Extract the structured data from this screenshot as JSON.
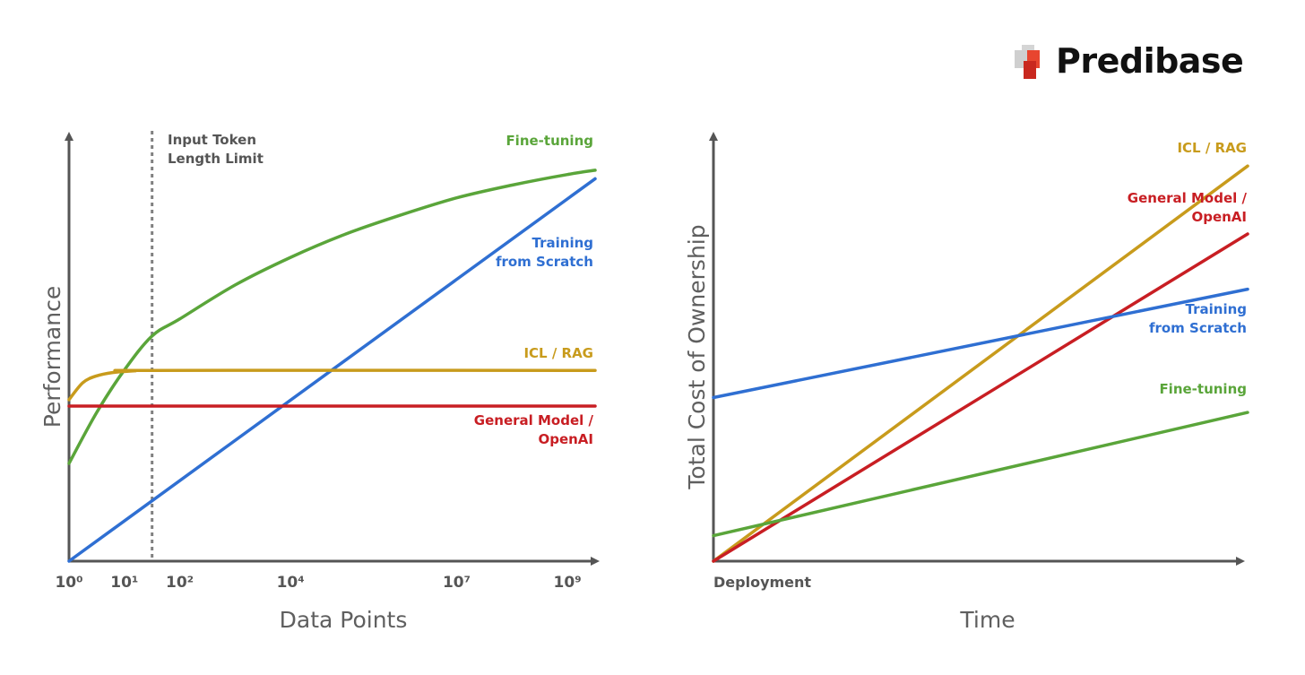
{
  "brand": {
    "name": "Predibase",
    "logo_icon": "predibase-logo-icon"
  },
  "colors": {
    "fine_tuning": "#5aa53a",
    "training": "#2f6fd2",
    "icl_rag": "#c89b1c",
    "general": "#c81e23",
    "axis": "#555555",
    "note": "#808080"
  },
  "chart_data": [
    {
      "type": "line",
      "title": "",
      "xlabel": "Data Points",
      "ylabel": "Performance",
      "xscale": "log",
      "x_ticks": [
        {
          "value": 0,
          "label": "10⁰"
        },
        {
          "value": 1,
          "label": "10¹"
        },
        {
          "value": 2,
          "label": "10²"
        },
        {
          "value": 4,
          "label": "10⁴"
        },
        {
          "value": 7,
          "label": "10⁷"
        },
        {
          "value": 9,
          "label": "10⁹"
        }
      ],
      "xlim": [
        0,
        9.5
      ],
      "ylim": [
        0,
        100
      ],
      "grid": false,
      "annotation": {
        "x": 1.5,
        "text_lines": [
          "Input Token",
          "Length Limit"
        ],
        "style": "dotted-vertical-line"
      },
      "series": [
        {
          "name": "Fine-tuning",
          "label_lines": [
            "Fine-tuning"
          ],
          "color_key": "fine_tuning",
          "x": [
            0,
            0.5,
            1,
            1.5,
            2,
            3,
            4,
            5,
            6,
            7,
            8,
            9,
            9.5
          ],
          "y": [
            23,
            35,
            45,
            53,
            57,
            65,
            71.5,
            77,
            81.5,
            85.5,
            88.5,
            91,
            92
          ]
        },
        {
          "name": "Training from Scratch",
          "label_lines": [
            "Training",
            "from Scratch"
          ],
          "color_key": "training",
          "x": [
            0,
            9.5
          ],
          "y": [
            0,
            90
          ]
        },
        {
          "name": "ICL / RAG",
          "label_lines": [
            "ICL / RAG"
          ],
          "color_key": "icl_rag",
          "x": [
            0,
            0.25,
            0.5,
            0.8,
            1.2,
            1.5,
            9.5
          ],
          "y": [
            38,
            42,
            43.6,
            44.4,
            44.8,
            44.9,
            44.9
          ]
        },
        {
          "name": "General Model / OpenAI",
          "label_lines": [
            "General Model /",
            "OpenAI"
          ],
          "color_key": "general",
          "x": [
            0,
            9.5
          ],
          "y": [
            36.5,
            36.5
          ]
        }
      ]
    },
    {
      "type": "line",
      "title": "",
      "xlabel": "Time",
      "ylabel": "Total Cost of Ownership",
      "x_ticks": [
        {
          "value": 0,
          "label": "Deployment"
        }
      ],
      "xlim": [
        0,
        10
      ],
      "ylim": [
        0,
        100
      ],
      "grid": false,
      "series": [
        {
          "name": "ICL / RAG",
          "label_lines": [
            "ICL / RAG"
          ],
          "color_key": "icl_rag",
          "x": [
            0,
            10
          ],
          "y": [
            0,
            93
          ]
        },
        {
          "name": "General Model / OpenAI",
          "label_lines": [
            "General Model /",
            "OpenAI"
          ],
          "color_key": "general",
          "x": [
            0,
            10
          ],
          "y": [
            0,
            77
          ]
        },
        {
          "name": "Training from Scratch",
          "label_lines": [
            "Training",
            "from Scratch"
          ],
          "color_key": "training",
          "x": [
            0,
            10
          ],
          "y": [
            38.5,
            64
          ]
        },
        {
          "name": "Fine-tuning",
          "label_lines": [
            "Fine-tuning"
          ],
          "color_key": "fine_tuning",
          "x": [
            0,
            10
          ],
          "y": [
            6,
            35
          ]
        }
      ]
    }
  ]
}
